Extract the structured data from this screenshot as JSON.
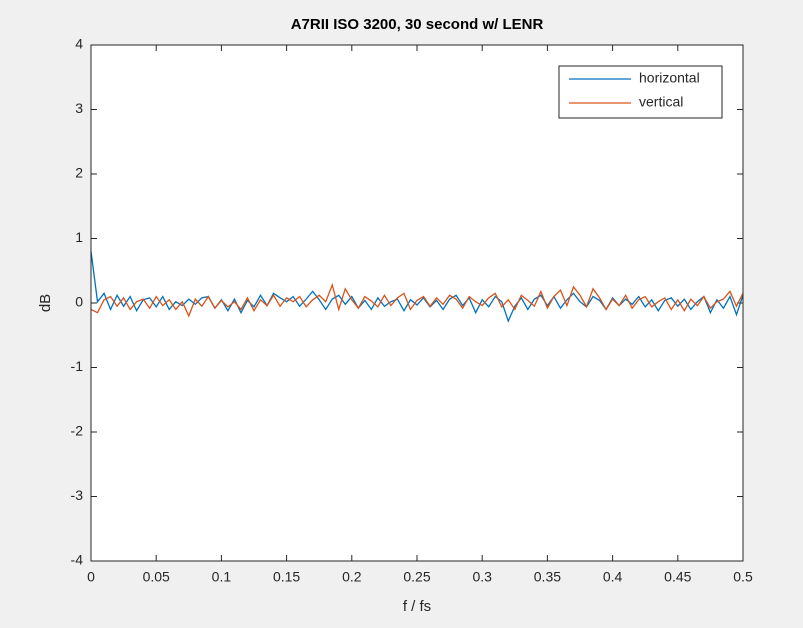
{
  "chart_data": {
    "type": "line",
    "title": "A7RII ISO 3200, 30 second w/ LENR",
    "xlabel": "f / fs",
    "ylabel": "dB",
    "x": [
      0,
      0.005,
      0.01,
      0.015,
      0.02,
      0.025,
      0.03,
      0.035,
      0.04,
      0.045,
      0.05,
      0.055,
      0.06,
      0.065,
      0.07,
      0.075,
      0.08,
      0.085,
      0.09,
      0.095,
      0.1,
      0.105,
      0.11,
      0.115,
      0.12,
      0.125,
      0.13,
      0.135,
      0.14,
      0.145,
      0.15,
      0.155,
      0.16,
      0.165,
      0.17,
      0.175,
      0.18,
      0.185,
      0.19,
      0.195,
      0.2,
      0.205,
      0.21,
      0.215,
      0.22,
      0.225,
      0.23,
      0.235,
      0.24,
      0.245,
      0.25,
      0.255,
      0.26,
      0.265,
      0.27,
      0.275,
      0.28,
      0.285,
      0.29,
      0.295,
      0.3,
      0.305,
      0.31,
      0.315,
      0.32,
      0.325,
      0.33,
      0.335,
      0.34,
      0.345,
      0.35,
      0.355,
      0.36,
      0.365,
      0.37,
      0.375,
      0.38,
      0.385,
      0.39,
      0.395,
      0.4,
      0.405,
      0.41,
      0.415,
      0.42,
      0.425,
      0.43,
      0.435,
      0.44,
      0.445,
      0.45,
      0.455,
      0.46,
      0.465,
      0.47,
      0.475,
      0.48,
      0.485,
      0.49,
      0.495,
      0.5
    ],
    "series": [
      {
        "name": "horizontal",
        "color": "#0072bd",
        "values": [
          0.8,
          0.02,
          0.15,
          -0.1,
          0.12,
          -0.05,
          0.1,
          -0.12,
          0.05,
          0.08,
          -0.06,
          0.1,
          -0.1,
          0.02,
          -0.04,
          0.06,
          -0.02,
          0.08,
          0.1,
          -0.08,
          0.05,
          -0.12,
          0.06,
          -0.15,
          0.04,
          -0.06,
          0.12,
          -0.04,
          0.15,
          0.08,
          0.02,
          0.1,
          -0.05,
          0.06,
          0.18,
          0.05,
          -0.1,
          0.06,
          0.12,
          -0.02,
          0.1,
          -0.08,
          0.04,
          -0.1,
          0.08,
          -0.05,
          0.02,
          0.06,
          -0.12,
          0.05,
          -0.03,
          0.08,
          -0.06,
          0.04,
          -0.1,
          0.06,
          0.12,
          -0.04,
          0.08,
          -0.15,
          0.05,
          -0.06,
          0.1,
          0.02,
          -0.28,
          -0.05,
          0.08,
          -0.1,
          0.06,
          0.12,
          -0.04,
          0.1,
          -0.08,
          0.05,
          0.15,
          0.02,
          -0.06,
          0.1,
          0.04,
          -0.1,
          0.08,
          -0.04,
          0.06,
          -0.02,
          0.1,
          -0.06,
          0.05,
          -0.12,
          0.04,
          0.08,
          -0.05,
          0.06,
          -0.1,
          0.02,
          0.1,
          -0.15,
          0.05,
          -0.08,
          0.1,
          -0.18,
          0.12
        ]
      },
      {
        "name": "vertical",
        "color": "#d95319",
        "values": [
          -0.1,
          -0.15,
          0.05,
          0.1,
          -0.05,
          0.08,
          -0.1,
          0.02,
          0.06,
          -0.08,
          0.1,
          -0.04,
          0.05,
          -0.1,
          0.02,
          -0.2,
          0.06,
          -0.05,
          0.1,
          -0.08,
          0.04,
          -0.06,
          0.02,
          -0.1,
          0.08,
          -0.12,
          0.05,
          -0.04,
          0.12,
          -0.05,
          0.08,
          0.02,
          0.1,
          -0.06,
          0.05,
          0.12,
          0.02,
          0.28,
          -0.1,
          0.22,
          0.05,
          -0.08,
          0.1,
          0.03,
          -0.06,
          0.12,
          -0.04,
          0.08,
          0.15,
          -0.1,
          0.04,
          0.1,
          -0.05,
          0.08,
          -0.02,
          0.12,
          0.06,
          -0.08,
          0.1,
          0.02,
          -0.04,
          0.08,
          0.15,
          -0.06,
          0.05,
          -0.1,
          0.12,
          0.04,
          -0.05,
          0.18,
          -0.08,
          0.1,
          0.2,
          -0.04,
          0.25,
          0.12,
          -0.06,
          0.22,
          0.08,
          -0.1,
          0.06,
          -0.04,
          0.12,
          -0.08,
          0.05,
          0.1,
          -0.06,
          0.02,
          0.08,
          -0.1,
          0.05,
          -0.12,
          0.06,
          -0.04,
          0.1,
          -0.08,
          0.02,
          0.06,
          0.18,
          -0.05,
          0.15
        ]
      }
    ],
    "xlim": [
      0,
      0.5
    ],
    "xticks": [
      0,
      0.05,
      0.1,
      0.15,
      0.2,
      0.25,
      0.3,
      0.35,
      0.4,
      0.45,
      0.5
    ],
    "ylim": [
      -4,
      4
    ],
    "yticks": [
      -4,
      -3,
      -2,
      -1,
      0,
      1,
      2,
      3,
      4
    ],
    "grid": false,
    "legend": "northeast"
  }
}
